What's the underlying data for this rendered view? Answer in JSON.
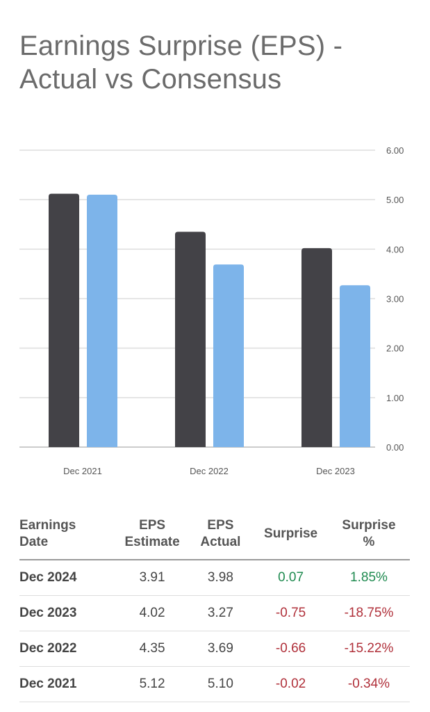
{
  "title_line1": "Earnings Surprise (EPS) -",
  "title_line2": "Actual vs Consensus",
  "colors": {
    "estimate": "#434247",
    "actual": "#7db4ea",
    "positive": "#1e8a4f",
    "negative": "#b0303a"
  },
  "chart_data": {
    "type": "bar",
    "categories": [
      "Dec 2021",
      "Dec 2022",
      "Dec 2023"
    ],
    "series": [
      {
        "values": [
          5.12,
          4.35,
          4.02
        ]
      },
      {
        "values": [
          5.1,
          3.69,
          3.27
        ]
      }
    ],
    "ylim": [
      0,
      6
    ],
    "yticks": [
      "0.00",
      "1.00",
      "2.00",
      "3.00",
      "4.00",
      "5.00",
      "6.00"
    ],
    "y_axis_position": "right",
    "grid": true
  },
  "table": {
    "headers": [
      "Earnings\nDate",
      "EPS\nEstimate",
      "EPS\nActual",
      "Surprise",
      "Surprise\n%"
    ],
    "rows": [
      [
        "Dec 2024",
        "3.91",
        "3.98",
        "0.07",
        "1.85%"
      ],
      [
        "Dec 2023",
        "4.02",
        "3.27",
        "-0.75",
        "-18.75%"
      ],
      [
        "Dec 2022",
        "4.35",
        "3.69",
        "-0.66",
        "-15.22%"
      ],
      [
        "Dec 2021",
        "5.12",
        "5.10",
        "-0.02",
        "-0.34%"
      ]
    ]
  }
}
